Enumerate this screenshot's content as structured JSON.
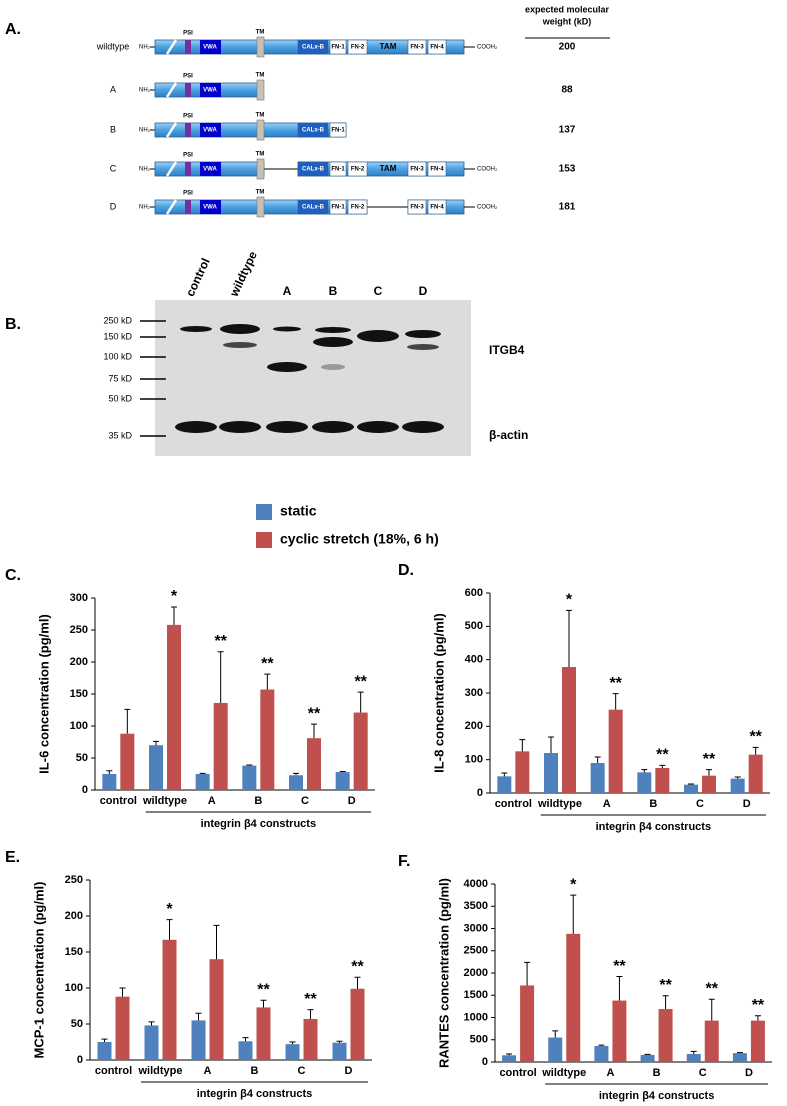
{
  "panel_a": {
    "label": "A.",
    "header_lines": [
      "expected molecular",
      "weight (kD)"
    ],
    "domains": {
      "nh": "NH₂",
      "cooh": "COOH₂",
      "psi": "PSI",
      "vwa": "VWA",
      "tm": "TM",
      "calxb": "CALx-B",
      "fn1": "FN-1",
      "fn2": "FN-2",
      "tam": "TAM",
      "fn3": "FN-3",
      "fn4": "FN-4"
    },
    "rows": [
      {
        "name": "wildtype",
        "weight": 200
      },
      {
        "name": "A",
        "weight": 88
      },
      {
        "name": "B",
        "weight": 137
      },
      {
        "name": "C",
        "weight": 153
      },
      {
        "name": "D",
        "weight": 181
      }
    ]
  },
  "panel_b": {
    "label": "B.",
    "lanes": [
      "control",
      "wildtype",
      "A",
      "B",
      "C",
      "D"
    ],
    "markers": [
      "250 kD",
      "150 kD",
      "100 kD",
      "75 kD",
      "50 kD",
      "35 kD"
    ],
    "bands": [
      "ITGB4",
      "β-actin"
    ]
  },
  "chart_data": [
    {
      "type": "bar",
      "panel": "C.",
      "y_label": "IL-6 concentration (pg/ml)",
      "x_group_label": "integrin β4 constructs",
      "categories": [
        "control",
        "wildtype",
        "A",
        "B",
        "C",
        "D"
      ],
      "series": [
        {
          "name": "static",
          "color": "#4f81bd",
          "values": [
            25,
            70,
            25,
            38,
            23,
            28
          ],
          "errors": [
            5,
            6,
            1,
            1,
            3,
            1
          ]
        },
        {
          "name": "cyclic stretch (18%, 6 h)",
          "color": "#c0504d",
          "values": [
            88,
            258,
            136,
            157,
            81,
            121
          ],
          "errors": [
            38,
            28,
            80,
            24,
            22,
            32
          ]
        }
      ],
      "significance": [
        null,
        "*",
        "**",
        "**",
        "**",
        "**"
      ],
      "ylim": [
        0,
        300
      ],
      "yticks": [
        0,
        50,
        100,
        150,
        200,
        250,
        300
      ]
    },
    {
      "type": "bar",
      "panel": "D.",
      "y_label": "IL-8 concentration (pg/ml)",
      "x_group_label": "integrin β4 constructs",
      "categories": [
        "control",
        "wildtype",
        "A",
        "B",
        "C",
        "D"
      ],
      "series": [
        {
          "color": "#4f81bd",
          "values": [
            50,
            120,
            90,
            62,
            25,
            43
          ],
          "errors": [
            10,
            48,
            18,
            8,
            2,
            5
          ]
        },
        {
          "color": "#c0504d",
          "values": [
            125,
            378,
            250,
            75,
            52,
            115
          ],
          "errors": [
            35,
            170,
            48,
            8,
            18,
            22
          ]
        }
      ],
      "significance": [
        null,
        "*",
        "**",
        "**",
        "**",
        "**"
      ],
      "ylim": [
        0,
        600
      ],
      "yticks": [
        0,
        100,
        200,
        300,
        400,
        500,
        600
      ]
    },
    {
      "type": "bar",
      "panel": "E.",
      "y_label": "MCP-1 concentration (pg/ml)",
      "x_group_label": "integrin β4 constructs",
      "categories": [
        "control",
        "wildtype",
        "A",
        "B",
        "C",
        "D"
      ],
      "series": [
        {
          "color": "#4f81bd",
          "values": [
            25,
            48,
            55,
            26,
            22,
            24
          ],
          "errors": [
            4,
            5,
            10,
            5,
            3,
            2
          ]
        },
        {
          "color": "#c0504d",
          "values": [
            88,
            167,
            140,
            73,
            57,
            99
          ],
          "errors": [
            12,
            28,
            47,
            10,
            13,
            16
          ]
        }
      ],
      "significance": [
        null,
        "*",
        null,
        "**",
        "**",
        "**"
      ],
      "ylim": [
        0,
        250
      ],
      "yticks": [
        0,
        50,
        100,
        150,
        200,
        250
      ]
    },
    {
      "type": "bar",
      "panel": "F.",
      "y_label": "RANTES concentration (pg/ml)",
      "x_group_label": "integrin β4 constructs",
      "categories": [
        "control",
        "wildtype",
        "A",
        "B",
        "C",
        "D"
      ],
      "series": [
        {
          "color": "#4f81bd",
          "values": [
            150,
            550,
            360,
            160,
            180,
            200
          ],
          "errors": [
            30,
            150,
            20,
            10,
            60,
            10
          ]
        },
        {
          "color": "#c0504d",
          "values": [
            1720,
            2880,
            1380,
            1190,
            930,
            930
          ],
          "errors": [
            520,
            870,
            540,
            300,
            480,
            110
          ]
        }
      ],
      "significance": [
        null,
        "*",
        "**",
        "**",
        "**",
        "**"
      ],
      "ylim": [
        0,
        4000
      ],
      "yticks": [
        0,
        500,
        1000,
        1500,
        2000,
        2500,
        3000,
        3500,
        4000
      ]
    }
  ]
}
